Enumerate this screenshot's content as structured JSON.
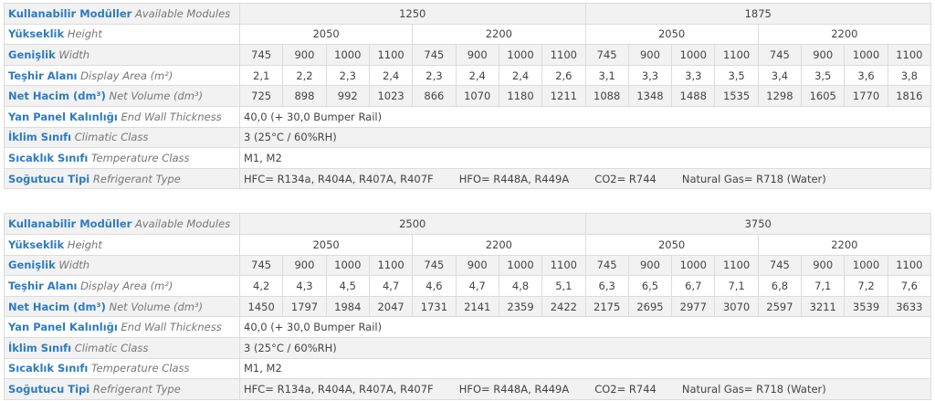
{
  "tables": [
    {
      "rows": [
        {
          "label": "Kullanabilir Modüller",
          "label_en": "Available Modules",
          "values": [
            "1250",
            "1875"
          ]
        },
        {
          "label": "Yükseklik",
          "label_en": "Height",
          "values": [
            "2050",
            "2200",
            "2050",
            "2200"
          ]
        },
        {
          "label": "Genişlik",
          "label_en": "Width",
          "values": [
            745,
            900,
            1000,
            1100,
            745,
            900,
            1000,
            1100,
            745,
            900,
            1000,
            1100,
            745,
            900,
            1000,
            1100
          ]
        },
        {
          "label": "Teşhir Alanı",
          "label_en": "Display Area (m²)",
          "values": [
            "2,1",
            "2,2",
            "2,3",
            "2,4",
            "2,3",
            "2,4",
            "2,4",
            "2,6",
            "3,1",
            "3,3",
            "3,3",
            "3,5",
            "3,4",
            "3,5",
            "3,6",
            "3,8"
          ]
        },
        {
          "label": "Net Hacim (dm³)",
          "label_en": "Net Volume (dm³)",
          "values": [
            725,
            898,
            992,
            1023,
            866,
            1070,
            1180,
            1211,
            1088,
            1348,
            1488,
            1535,
            1298,
            1605,
            1770,
            1816
          ]
        },
        {
          "label": "Yan Panel Kalınlığı",
          "label_en": "End Wall Thickness",
          "value": "40,0 (+ 30,0 Bumper Rail)"
        },
        {
          "label": "İklim Sınıfı",
          "label_en": "Climatic Class",
          "value": "3 (25°C / 60%RH)"
        },
        {
          "label": "Sıcaklık Sınıfı",
          "label_en": "Temperature Class",
          "value": "M1, M2"
        },
        {
          "label": "Soğutucu Tipi",
          "label_en": "Refrigerant Type",
          "items": [
            "HFC= R134a, R404A, R407A, R407F",
            "HFO= R448A, R449A",
            "CO2= R744",
            "Natural Gas= R718 (Water)"
          ]
        }
      ]
    },
    {
      "rows": [
        {
          "label": "Kullanabilir Modüller",
          "label_en": "Available Modules",
          "values": [
            "2500",
            "3750"
          ]
        },
        {
          "label": "Yükseklik",
          "label_en": "Height",
          "values": [
            "2050",
            "2200",
            "2050",
            "2200"
          ]
        },
        {
          "label": "Genişlik",
          "label_en": "Width",
          "values": [
            745,
            900,
            1000,
            1100,
            745,
            900,
            1000,
            1100,
            745,
            900,
            1000,
            1100,
            745,
            900,
            1000,
            1100
          ]
        },
        {
          "label": "Teşhir Alanı",
          "label_en": "Display Area (m²)",
          "values": [
            "4,2",
            "4,3",
            "4,5",
            "4,7",
            "4,6",
            "4,7",
            "4,8",
            "5,1",
            "6,3",
            "6,5",
            "6,7",
            "7,1",
            "6,8",
            "7,1",
            "7,2",
            "7,6"
          ]
        },
        {
          "label": "Net Hacim (dm³)",
          "label_en": "Net Volume (dm³)",
          "values": [
            1450,
            1797,
            1984,
            2047,
            1731,
            2141,
            2359,
            2422,
            2175,
            2695,
            2977,
            3070,
            2597,
            3211,
            3539,
            3633
          ]
        },
        {
          "label": "Yan Panel Kalınlığı",
          "label_en": "End Wall Thickness",
          "value": "40,0 (+ 30,0 Bumper Rail)"
        },
        {
          "label": "İklim Sınıfı",
          "label_en": "Climatic Class",
          "value": "3 (25°C / 60%RH)"
        },
        {
          "label": "Sıcaklık Sınıfı",
          "label_en": "Temperature Class",
          "value": "M1, M2"
        },
        {
          "label": "Soğutucu Tipi",
          "label_en": "Refrigerant Type",
          "items": [
            "HFC= R134a, R404A, R407A, R407F",
            "HFO= R448A, R449A",
            "CO2= R744",
            "Natural Gas= R718 (Water)"
          ]
        }
      ]
    }
  ]
}
